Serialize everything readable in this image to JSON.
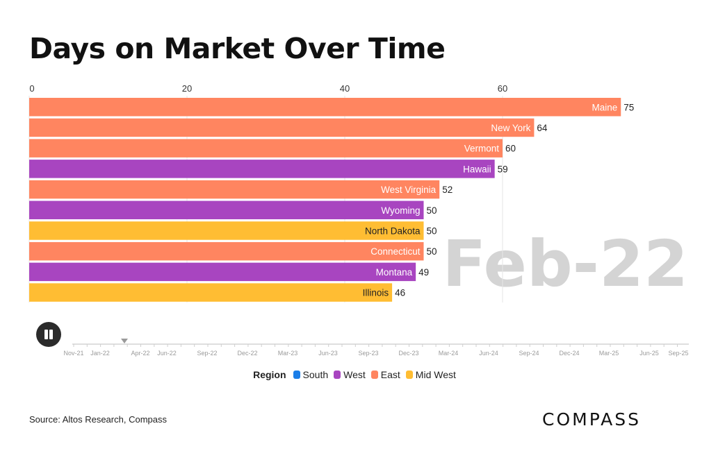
{
  "title": "Days on Market Over Time",
  "period_label": "Feb-22",
  "source": "Source: Altos Research, Compass",
  "logo_text": "COMPASS",
  "legend": {
    "title": "Region",
    "items": [
      {
        "label": "South",
        "color": "#1b7ee8"
      },
      {
        "label": "West",
        "color": "#a845c0"
      },
      {
        "label": "East",
        "color": "#ff8560"
      },
      {
        "label": "Mid West",
        "color": "#ffbd33"
      }
    ]
  },
  "timeline": {
    "labels": [
      "Nov-21",
      "Jan-22",
      "Apr-22",
      "Jun-22",
      "Sep-22",
      "Dec-22",
      "Mar-23",
      "Jun-23",
      "Sep-23",
      "Dec-23",
      "Mar-24",
      "Jun-24",
      "Sep-24",
      "Dec-24",
      "Mar-25",
      "Jun-25",
      "Sep-25"
    ],
    "current": "Feb-22"
  },
  "chart_data": {
    "type": "bar",
    "orientation": "horizontal",
    "title": "Days on Market Over Time",
    "xlim": [
      0,
      75
    ],
    "xticks": [
      0,
      20,
      40,
      60
    ],
    "grid": true,
    "categories": [
      "Maine",
      "New York",
      "Vermont",
      "Hawaii",
      "West Virginia",
      "Wyoming",
      "North Dakota",
      "Connecticut",
      "Montana",
      "Illinois"
    ],
    "values": [
      75,
      64,
      60,
      59,
      52,
      50,
      50,
      50,
      49,
      46
    ],
    "regions": [
      "East",
      "East",
      "East",
      "West",
      "East",
      "West",
      "Mid West",
      "East",
      "West",
      "Mid West"
    ]
  }
}
